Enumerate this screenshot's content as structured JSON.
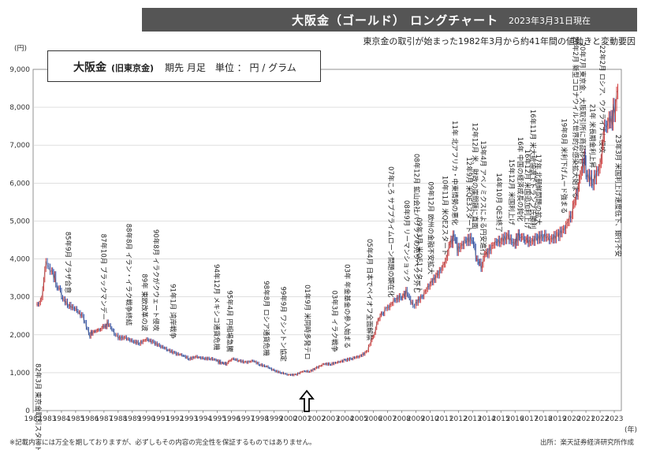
{
  "header": {
    "title": "大阪金（ゴールド） ロングチャート",
    "date": "2023年3月31日現在",
    "subtitle": "東京金の取引が始まった1982年3月から約41年間の値動きと変動要因"
  },
  "legend": {
    "name": "大阪金",
    "sub": "(旧東京金)",
    "info": "期先 月足　単位 ： 円 / グラム"
  },
  "footer": {
    "note": "※記載内容には万全を期しておりますが、必ずしもその内容の完全性を保証するものではありません。",
    "source": "出所：楽天証券経済研究所作成"
  },
  "chart_data": {
    "type": "line",
    "title": "大阪金（ゴールド） ロングチャート",
    "ylabel": "(円)",
    "xlabel": "(年)",
    "ylim": [
      0,
      9000
    ],
    "xlim": [
      1982,
      2023.5
    ],
    "yticks": [
      "0",
      "1,000",
      "2,000",
      "3,000",
      "4,000",
      "5,000",
      "6,000",
      "7,000",
      "8,000",
      "9,000"
    ],
    "xticks": [
      "1982",
      "1983",
      "1984",
      "1985",
      "1986",
      "1987",
      "1988",
      "1989",
      "1990",
      "1991",
      "1992",
      "1993",
      "1994",
      "1995",
      "1996",
      "1997",
      "1998",
      "1999",
      "2000",
      "2001",
      "2002",
      "2003",
      "2004",
      "2005",
      "2006",
      "2007",
      "2008",
      "2009",
      "2010",
      "2011",
      "2012",
      "2013",
      "2014",
      "2015",
      "2016",
      "2017",
      "2018",
      "2019",
      "2020",
      "2021",
      "2022",
      "2023"
    ],
    "series": [
      {
        "name": "大阪金 期先 月足",
        "x": [
          1982.2,
          1982.6,
          1982.9,
          1983.1,
          1983.3,
          1983.6,
          1984.0,
          1984.5,
          1985.0,
          1985.5,
          1986.0,
          1986.3,
          1986.6,
          1987.0,
          1987.3,
          1987.8,
          1988.0,
          1988.5,
          1989.0,
          1989.5,
          1990.0,
          1990.5,
          1991.0,
          1991.5,
          1992.0,
          1992.5,
          1993.0,
          1993.5,
          1994.0,
          1994.5,
          1995.0,
          1995.3,
          1995.6,
          1996.0,
          1996.5,
          1997.0,
          1997.5,
          1998.0,
          1998.5,
          1999.0,
          1999.5,
          2000.0,
          2000.5,
          2001.0,
          2001.5,
          2002.0,
          2002.5,
          2003.0,
          2003.5,
          2004.0,
          2004.5,
          2005.0,
          2005.5,
          2006.0,
          2006.4,
          2006.8,
          2007.0,
          2007.5,
          2008.0,
          2008.3,
          2008.8,
          2009.0,
          2009.5,
          2010.0,
          2010.5,
          2011.0,
          2011.4,
          2011.7,
          2012.0,
          2012.5,
          2013.0,
          2013.3,
          2013.6,
          2014.0,
          2014.5,
          2015.0,
          2015.5,
          2016.0,
          2016.3,
          2016.7,
          2017.0,
          2017.5,
          2018.0,
          2018.5,
          2019.0,
          2019.5,
          2020.0,
          2020.3,
          2020.6,
          2020.9,
          2021.0,
          2021.5,
          2022.0,
          2022.3,
          2022.7,
          2023.0,
          2023.25
        ],
        "values": [
          2700,
          3000,
          3900,
          3800,
          3700,
          3400,
          3000,
          2800,
          2700,
          2500,
          2000,
          2100,
          2100,
          2200,
          2300,
          2000,
          1950,
          1950,
          1850,
          1800,
          1900,
          1800,
          1700,
          1600,
          1500,
          1450,
          1350,
          1400,
          1350,
          1350,
          1300,
          1250,
          1250,
          1350,
          1300,
          1250,
          1300,
          1200,
          1150,
          1050,
          1000,
          950,
          950,
          1050,
          1050,
          1150,
          1250,
          1250,
          1300,
          1350,
          1400,
          1450,
          1550,
          2000,
          2400,
          2600,
          2700,
          2900,
          3000,
          3100,
          2700,
          2800,
          3000,
          3300,
          3500,
          3800,
          4400,
          4600,
          4200,
          4400,
          4500,
          4000,
          3800,
          4100,
          4400,
          4500,
          4600,
          4400,
          4700,
          4500,
          4500,
          4600,
          4700,
          4600,
          4700,
          4900,
          5300,
          5600,
          6200,
          6700,
          6300,
          6100,
          6500,
          7400,
          7600,
          7900,
          8450
        ]
      }
    ],
    "annotations": [
      {
        "x": 1982.2,
        "text": "82年3月 東京金取引スタート"
      },
      {
        "x": 1984.3,
        "text": "85年9月 プラザ合意"
      },
      {
        "x": 1986.8,
        "text": "87年10月 ブラックマンデー"
      },
      {
        "x": 1988.6,
        "text": "88年8月 イラン・イラク戦争終結"
      },
      {
        "x": 1989.7,
        "text": "89年 東欧改革の波"
      },
      {
        "x": 1990.5,
        "text": "90年8月 イラクがクウェート侵攻"
      },
      {
        "x": 1991.7,
        "text": "91年1月 湾岸戦争"
      },
      {
        "x": 1994.8,
        "text": "94年12月 メキシコ通貨危機"
      },
      {
        "x": 1995.7,
        "text": "95年4月 円相場急騰"
      },
      {
        "x": 1998.3,
        "text": "98年8月 ロシア通貨危機"
      },
      {
        "x": 1999.5,
        "text": "99年9月 ワシントン協定"
      },
      {
        "x": 2001.2,
        "text": "01年9月 米同時多発テロ"
      },
      {
        "x": 2003.1,
        "text": "03年3月 イラク戦争"
      },
      {
        "x": 2004.0,
        "text": "03年 年金基金の参入始まる"
      },
      {
        "x": 2005.6,
        "text": "05年4月 日本でペイオフ全面解禁"
      },
      {
        "x": 2007.1,
        "text": "07年ころ サブプライムローン問題の顕在化"
      },
      {
        "x": 2008.2,
        "text": "08年9月 リーマンショック"
      },
      {
        "x": 2008.9,
        "text": "08年12月 鉱山会社バリックの売りヘッジ外し"
      },
      {
        "x": 2009.1,
        "text": "09年3月 米QE1スタート"
      },
      {
        "x": 2009.9,
        "text": "09年12月 欧州の金融不安拡大"
      },
      {
        "x": 2010.9,
        "text": "10年11月 米QE2スタート"
      },
      {
        "x": 2011.6,
        "text": "11年 北アフリカ・中東情勢の悪化"
      },
      {
        "x": 2012.6,
        "text": "12年9月 米QE3スタート"
      },
      {
        "x": 2013.0,
        "text": "12年12月 米、財政の崖問題に直面"
      },
      {
        "x": 2013.6,
        "text": "13年4月 アベノミクスによる円安進行"
      },
      {
        "x": 2014.7,
        "text": "14年10月 QE3終了"
      },
      {
        "x": 2015.6,
        "text": "15年12月 米国利上げ"
      },
      {
        "x": 2016.2,
        "text": "16年 中国の経済成長の鈍化"
      },
      {
        "x": 2016.7,
        "text": "16年12月 米国追加利上げ"
      },
      {
        "x": 2017.1,
        "text": "16年11月 米大統領選でトランプ氏勝利"
      },
      {
        "x": 2017.5,
        "text": "17年 北朝鮮問題の拡大"
      },
      {
        "x": 2019.3,
        "text": "19年8月 米利下げムード強まる"
      },
      {
        "x": 2020.1,
        "text": "20年2月 新型コロナウイルス世界的な感染拡大始まる"
      },
      {
        "x": 2020.6,
        "text": "20年7月 東京金、大阪取引所に商品移管"
      },
      {
        "x": 2021.3,
        "text": "21年 米長期金利上昇"
      },
      {
        "x": 2022.0,
        "text": "22年2月 ロシア、ウクライナに侵攻"
      },
      {
        "x": 2023.1,
        "text": "23年3月 米国利上げ速度低下、銀行不安"
      }
    ]
  }
}
